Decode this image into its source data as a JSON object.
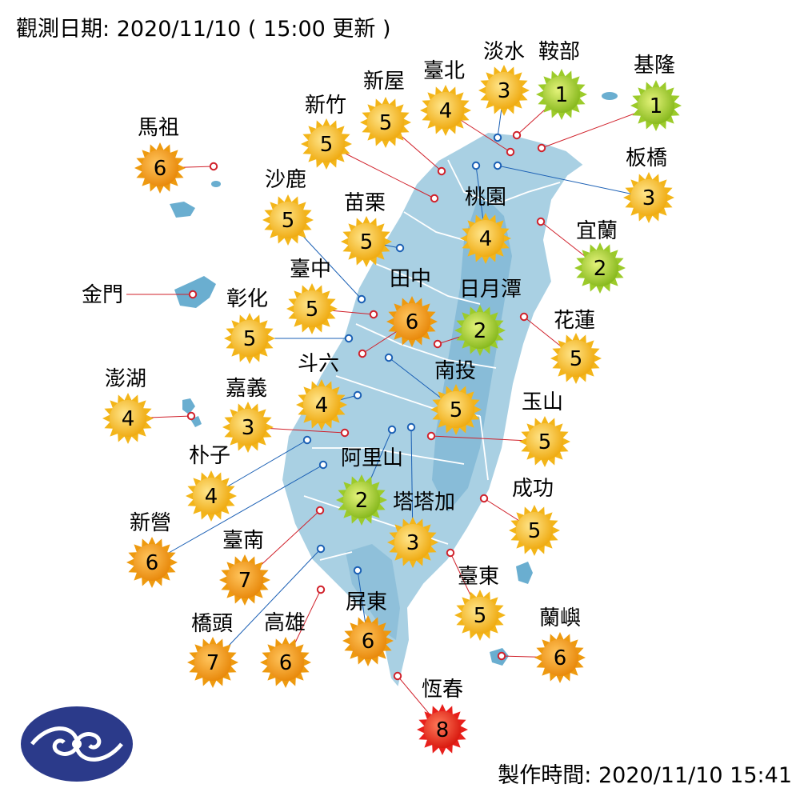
{
  "header": {
    "observed_label": "觀測日期:",
    "observed_value": "2020/11/10 ( 15:00 更新 )",
    "produced_label": "製作時間:",
    "produced_value": "2020/11/10 15:41"
  },
  "logo": {
    "icon": "cwb-logo-icon"
  },
  "legend_colors": {
    "1": "#9ccb2a",
    "2": "#9ccb2a",
    "3": "#f3b519",
    "4": "#f3b519",
    "5": "#f3b519",
    "6": "#ee9a0f",
    "7": "#ee9a0f",
    "8": "#e8201c",
    "low_dot": "#1a5fb4",
    "high_dot": "#d0202a",
    "land": "#a9d0e3",
    "mountain": "#7fb6d4",
    "islands": "#6aaed0"
  },
  "stations": [
    {
      "name": "淡水",
      "value": 3
    },
    {
      "name": "鞍部",
      "value": 1
    },
    {
      "name": "基隆",
      "value": 1
    },
    {
      "name": "臺北",
      "value": 4
    },
    {
      "name": "新屋",
      "value": 5
    },
    {
      "name": "新竹",
      "value": 5
    },
    {
      "name": "板橋",
      "value": 3
    },
    {
      "name": "馬祖",
      "value": 6
    },
    {
      "name": "沙鹿",
      "value": 5
    },
    {
      "name": "苗栗",
      "value": 5
    },
    {
      "name": "桃園",
      "value": 4
    },
    {
      "name": "宜蘭",
      "value": 2
    },
    {
      "name": "臺中",
      "value": 5
    },
    {
      "name": "田中",
      "value": 6
    },
    {
      "name": "日月潭",
      "value": 2
    },
    {
      "name": "金門",
      "value": null
    },
    {
      "name": "彰化",
      "value": 5
    },
    {
      "name": "花蓮",
      "value": 5
    },
    {
      "name": "斗六",
      "value": 4
    },
    {
      "name": "南投",
      "value": 5
    },
    {
      "name": "澎湖",
      "value": 4
    },
    {
      "name": "嘉義",
      "value": 3
    },
    {
      "name": "玉山",
      "value": 5
    },
    {
      "name": "朴子",
      "value": 4
    },
    {
      "name": "阿里山",
      "value": 2
    },
    {
      "name": "塔塔加",
      "value": 3
    },
    {
      "name": "成功",
      "value": 5
    },
    {
      "name": "新營",
      "value": 6
    },
    {
      "name": "臺南",
      "value": 7
    },
    {
      "name": "臺東",
      "value": 5
    },
    {
      "name": "屏東",
      "value": 6
    },
    {
      "name": "蘭嶼",
      "value": 6
    },
    {
      "name": "橋頭",
      "value": 7
    },
    {
      "name": "高雄",
      "value": 6
    },
    {
      "name": "恆春",
      "value": 8
    }
  ]
}
